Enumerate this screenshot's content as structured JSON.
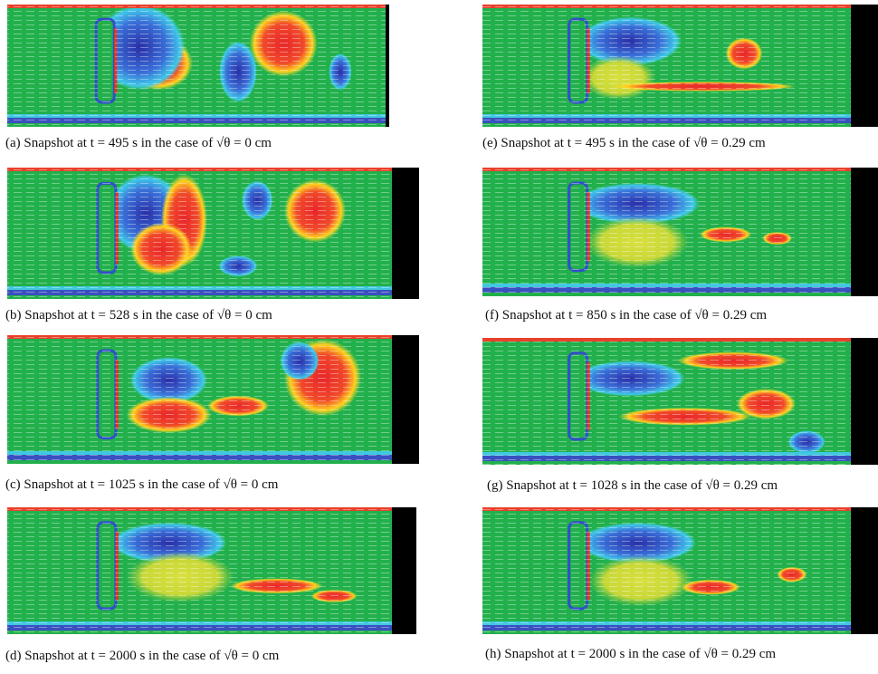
{
  "panels": [
    {
      "caption": "(a) Snapshot at t = 495 s in the case of √θ = 0 cm"
    },
    {
      "caption": "(b) Snapshot at t = 528 s in the case of √θ = 0 cm"
    },
    {
      "caption": "(c) Snapshot at t = 1025 s in the case of √θ = 0 cm"
    },
    {
      "caption": "(d) Snapshot at t = 2000 s in the case of √θ = 0 cm"
    },
    {
      "caption": "(e) Snapshot at t = 495 s in the case of √θ = 0.29 cm"
    },
    {
      "caption": "(f) Snapshot at t = 850 s in the case of √θ = 0.29 cm"
    },
    {
      "caption": "(g) Snapshot at t = 1028 s in the case of √θ = 0.29 cm"
    },
    {
      "caption": "(h) Snapshot at t = 2000 s in the case of √θ = 0.29 cm"
    }
  ]
}
